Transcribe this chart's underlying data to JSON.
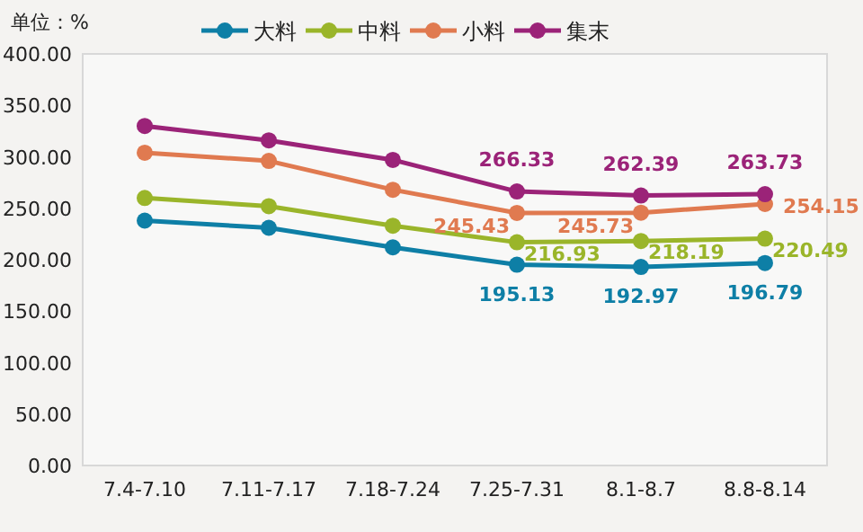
{
  "chart_data": {
    "type": "line",
    "ylabel": "单位：%",
    "categories": [
      "7.4-7.10",
      "7.11-7.17",
      "7.18-7.24",
      "7.25-7.31",
      "8.1-8.7",
      "8.8-8.14"
    ],
    "series": [
      {
        "name": "大料",
        "color": "#0e7fa6",
        "values": [
          238,
          231,
          212,
          195.13,
          192.97,
          196.79
        ],
        "value_labels": [
          null,
          null,
          null,
          "195.13",
          "192.97",
          "196.79"
        ]
      },
      {
        "name": "中料",
        "color": "#9ab52a",
        "values": [
          260,
          252,
          233,
          216.93,
          218.19,
          220.49
        ],
        "value_labels": [
          null,
          null,
          null,
          "216.93",
          "218.19",
          "220.49"
        ]
      },
      {
        "name": "小料",
        "color": "#e07a50",
        "values": [
          304,
          296,
          268,
          245.43,
          245.73,
          254.15
        ],
        "value_labels": [
          null,
          null,
          null,
          "245.43",
          "245.73",
          "254.15"
        ]
      },
      {
        "name": "集末",
        "color": "#9b2378",
        "values": [
          330,
          316,
          297,
          266.33,
          262.39,
          263.73
        ],
        "value_labels": [
          null,
          null,
          null,
          "266.33",
          "262.39",
          "263.73"
        ]
      }
    ],
    "ylim": [
      0,
      400
    ],
    "yticks": [
      {
        "value": 0,
        "label": "0.00"
      },
      {
        "value": 50,
        "label": "50.00"
      },
      {
        "value": 100,
        "label": "100.00"
      },
      {
        "value": 150,
        "label": "150.00"
      },
      {
        "value": 200,
        "label": "200.00"
      },
      {
        "value": 250,
        "label": "250.00"
      },
      {
        "value": 300,
        "label": "300.00"
      },
      {
        "value": 350,
        "label": "350.00"
      },
      {
        "value": 400,
        "label": "400.00"
      }
    ],
    "grid": false,
    "legend": "top",
    "marker": "circle",
    "line_style": "solid"
  }
}
